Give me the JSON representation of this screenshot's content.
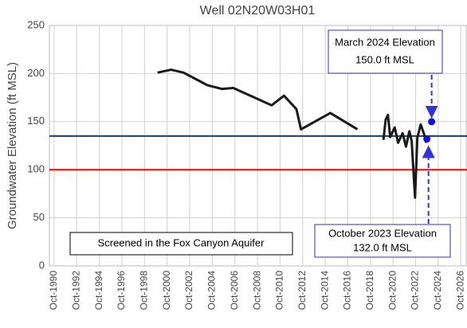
{
  "chart_data": {
    "type": "line",
    "title": "Well 02N20W03H01",
    "ylabel": "Groundwater Elevation (ft MSL)",
    "xlim": [
      1990.33,
      2027.3
    ],
    "ylim": [
      0,
      250
    ],
    "yticks": [
      0,
      50,
      100,
      150,
      200,
      250
    ],
    "xticks": [
      {
        "value": 1990.75,
        "label": "Oct-1990"
      },
      {
        "value": 1992.75,
        "label": "Oct-1992"
      },
      {
        "value": 1994.75,
        "label": "Oct-1994"
      },
      {
        "value": 1996.75,
        "label": "Oct-1996"
      },
      {
        "value": 1998.75,
        "label": "Oct-1998"
      },
      {
        "value": 2000.75,
        "label": "Oct-2000"
      },
      {
        "value": 2002.75,
        "label": "Oct-2002"
      },
      {
        "value": 2004.75,
        "label": "Oct-2004"
      },
      {
        "value": 2006.75,
        "label": "Oct-2006"
      },
      {
        "value": 2008.75,
        "label": "Oct-2008"
      },
      {
        "value": 2010.75,
        "label": "Oct-2010"
      },
      {
        "value": 2012.75,
        "label": "Oct-2012"
      },
      {
        "value": 2014.75,
        "label": "Oct-2014"
      },
      {
        "value": 2016.75,
        "label": "Oct-2016"
      },
      {
        "value": 2018.75,
        "label": "Oct-2018"
      },
      {
        "value": 2020.75,
        "label": "Oct-2020"
      },
      {
        "value": 2022.75,
        "label": "Oct-2022"
      },
      {
        "value": 2024.75,
        "label": "Oct-2024"
      },
      {
        "value": 2026.75,
        "label": "Oct-2026"
      }
    ],
    "grid": true,
    "hlines": [
      {
        "value": 135,
        "color": "#1f3864"
      },
      {
        "value": 100,
        "color": "#ff0000"
      }
    ],
    "series": [
      {
        "color": "#1a1a1a",
        "x": [
          1999.9,
          2001.1,
          2002.2,
          2004.3,
          2005.6,
          2006.6,
          2008.5,
          2010.0,
          2011.1,
          2012.2,
          2012.6,
          2015.2,
          2017.6,
          2018.8,
          2019.9,
          2020.1,
          2020.3,
          2020.5,
          2020.9,
          2021.2,
          2021.6,
          2021.9,
          2022.2,
          2022.4,
          2022.7,
          2022.9,
          2023.2,
          2023.5,
          2023.7
        ],
        "values": [
          201,
          204,
          201,
          188,
          184,
          185,
          175,
          167,
          177,
          163,
          142,
          159,
          142,
          null,
          131,
          152,
          157,
          134,
          144,
          128,
          138,
          124,
          140,
          130,
          71,
          133,
          147,
          137,
          128
        ]
      }
    ],
    "points": {
      "color": "#1010e0",
      "x": [
        2023.75,
        2024.17
      ],
      "values": [
        132,
        150
      ]
    },
    "annotations": {
      "march": [
        "March 2024 Elevation",
        "150.0 ft MSL"
      ],
      "october": [
        "October 2023 Elevation",
        "132.0 ft MSL"
      ],
      "aquifer": "Screened in the Fox Canyon Aquifer"
    }
  }
}
